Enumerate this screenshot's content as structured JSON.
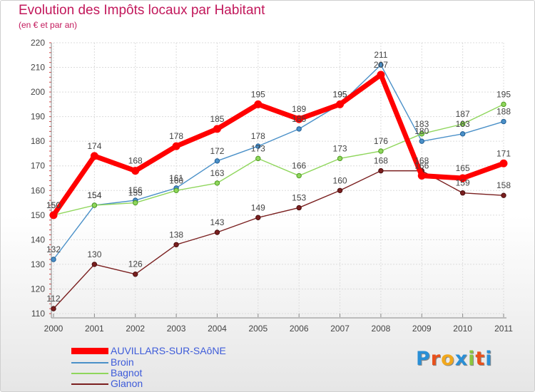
{
  "title": "Evolution des Impôts locaux par Habitant",
  "subtitle": "(en € et par an)",
  "brand": "Proxiti",
  "chart_data": {
    "type": "line",
    "title": "Evolution des Impôts locaux par Habitant",
    "subtitle": "(en € et par an)",
    "xlabel": "",
    "ylabel": "",
    "ylim": [
      110,
      220
    ],
    "yticks": [
      110,
      120,
      130,
      140,
      150,
      160,
      170,
      180,
      190,
      200,
      210,
      220
    ],
    "grid": true,
    "legend_position": "bottom-left",
    "categories": [
      "2000",
      "2001",
      "2002",
      "2003",
      "2004",
      "2005",
      "2006",
      "2007",
      "2008",
      "2009",
      "2010",
      "2011"
    ],
    "series": [
      {
        "name": "AUVILLARS-SUR-SAôNE",
        "color": "#ff0000",
        "values": [
          150,
          174,
          168,
          178,
          185,
          195,
          189,
          195,
          207,
          166,
          165,
          171
        ]
      },
      {
        "name": "Broin",
        "color": "#4a90c8",
        "values": [
          132,
          154,
          156,
          161,
          172,
          178,
          185,
          195,
          211,
          180,
          183,
          188
        ]
      },
      {
        "name": "Bagnot",
        "color": "#8fd65c",
        "values": [
          150,
          154,
          155,
          160,
          163,
          173,
          166,
          173,
          176,
          183,
          187,
          195
        ]
      },
      {
        "name": "Glanon",
        "color": "#7a1f1f",
        "values": [
          112,
          130,
          126,
          138,
          143,
          149,
          153,
          160,
          168,
          168,
          159,
          158
        ]
      }
    ]
  }
}
